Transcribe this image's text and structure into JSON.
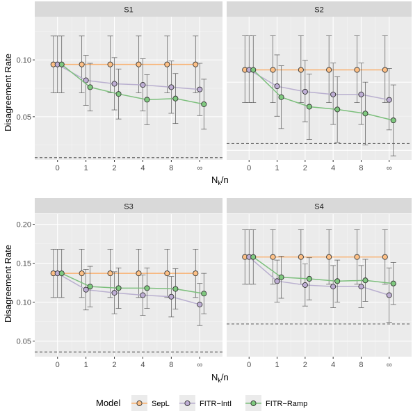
{
  "chart_data": {
    "type": "line",
    "x_tick_labels": [
      "0",
      "1",
      "2",
      "4",
      "8",
      "∞"
    ],
    "xlabel": "N_k/n",
    "xlabel_main": "N",
    "xlabel_sub": "k",
    "xlabel_tail": "/n",
    "ylabel": "Disagreement Rate",
    "legend": {
      "title": "Model",
      "position": "bottom",
      "entries": [
        {
          "name": "SepL",
          "color": "#fdc086",
          "line": "#f9b170"
        },
        {
          "name": "FITR−IntI",
          "color": "#beaed4",
          "line": "#b9afcf"
        },
        {
          "name": "FITR−Ramp",
          "color": "#7fc97f",
          "line": "#7cbf7c"
        }
      ]
    },
    "panels": [
      {
        "title": "S1",
        "ylim": [
          0.012,
          0.138
        ],
        "y_ticks": [
          0.05,
          0.1
        ],
        "y_tick_labels": [
          "0.05",
          "0.10"
        ],
        "reference_line": 0.014,
        "series": [
          {
            "name": "SepL",
            "values": [
              0.096,
              0.096,
              0.096,
              0.096,
              0.096,
              0.096
            ],
            "lower": [
              0.071,
              0.071,
              0.071,
              0.071,
              0.071,
              0.071
            ],
            "upper": [
              0.121,
              0.121,
              0.121,
              0.121,
              0.121,
              0.121
            ]
          },
          {
            "name": "FITR−IntI",
            "values": [
              0.096,
              0.082,
              0.079,
              0.078,
              0.076,
              0.074
            ],
            "lower": [
              0.071,
              0.06,
              0.056,
              0.055,
              0.053,
              0.051
            ],
            "upper": [
              0.121,
              0.104,
              0.102,
              0.101,
              0.099,
              0.097
            ]
          },
          {
            "name": "FITR−Ramp",
            "values": [
              0.096,
              0.076,
              0.07,
              0.065,
              0.066,
              0.061
            ],
            "lower": [
              0.071,
              0.055,
              0.048,
              0.043,
              0.044,
              0.039
            ],
            "upper": [
              0.121,
              0.097,
              0.092,
              0.087,
              0.088,
              0.083
            ]
          }
        ]
      },
      {
        "title": "S2",
        "ylim": [
          0.043,
          0.148
        ],
        "y_ticks": [
          0.05,
          0.1
        ],
        "y_tick_labels": [
          "",
          ""
        ],
        "reference_line": 0.055,
        "series": [
          {
            "name": "SepL",
            "values": [
              0.109,
              0.109,
              0.109,
              0.109,
              0.109,
              0.109
            ],
            "lower": [
              0.085,
              0.085,
              0.085,
              0.085,
              0.085,
              0.085
            ],
            "upper": [
              0.134,
              0.134,
              0.134,
              0.134,
              0.134,
              0.134
            ]
          },
          {
            "name": "FITR−IntI",
            "values": [
              0.109,
              0.097,
              0.093,
              0.091,
              0.091,
              0.087
            ],
            "lower": [
              0.085,
              0.075,
              0.071,
              0.069,
              0.069,
              0.065
            ],
            "upper": [
              0.134,
              0.12,
              0.116,
              0.114,
              0.114,
              0.11
            ]
          },
          {
            "name": "FITR−Ramp",
            "values": [
              0.109,
              0.089,
              0.082,
              0.08,
              0.077,
              0.072
            ],
            "lower": [
              0.085,
              0.066,
              0.058,
              0.056,
              0.054,
              0.046
            ],
            "upper": [
              0.134,
              0.112,
              0.106,
              0.104,
              0.1,
              0.098
            ]
          }
        ]
      },
      {
        "title": "S3",
        "ylim": [
          0.03,
          0.213
        ],
        "y_ticks": [
          0.05,
          0.1,
          0.15,
          0.2
        ],
        "y_tick_labels": [
          "0.05",
          "0.10",
          "0.15",
          "0.20"
        ],
        "reference_line": 0.036,
        "series": [
          {
            "name": "SepL",
            "values": [
              0.137,
              0.137,
              0.137,
              0.137,
              0.137,
              0.137
            ],
            "lower": [
              0.106,
              0.106,
              0.106,
              0.106,
              0.106,
              0.106
            ],
            "upper": [
              0.168,
              0.168,
              0.168,
              0.168,
              0.168,
              0.168
            ]
          },
          {
            "name": "FITR−IntI",
            "values": [
              0.137,
              0.116,
              0.112,
              0.109,
              0.107,
              0.097
            ],
            "lower": [
              0.106,
              0.09,
              0.085,
              0.083,
              0.081,
              0.07
            ],
            "upper": [
              0.168,
              0.142,
              0.139,
              0.135,
              0.133,
              0.124
            ]
          },
          {
            "name": "FITR−Ramp",
            "values": [
              0.137,
              0.12,
              0.118,
              0.118,
              0.117,
              0.111
            ],
            "lower": [
              0.106,
              0.094,
              0.092,
              0.092,
              0.091,
              0.085
            ],
            "upper": [
              0.168,
              0.146,
              0.144,
              0.144,
              0.143,
              0.137
            ]
          }
        ]
      },
      {
        "title": "S4",
        "ylim": [
          0.03,
          0.213
        ],
        "y_ticks": [
          0.05,
          0.1,
          0.15,
          0.2
        ],
        "y_tick_labels": [
          "",
          "",
          "",
          ""
        ],
        "reference_line": 0.072,
        "series": [
          {
            "name": "SepL",
            "values": [
              0.158,
              0.158,
              0.158,
              0.158,
              0.158,
              0.158
            ],
            "lower": [
              0.123,
              0.123,
              0.123,
              0.123,
              0.123,
              0.123
            ],
            "upper": [
              0.193,
              0.193,
              0.193,
              0.193,
              0.193,
              0.193
            ]
          },
          {
            "name": "FITR−IntI",
            "values": [
              0.158,
              0.127,
              0.122,
              0.12,
              0.12,
              0.109
            ],
            "lower": [
              0.123,
              0.1,
              0.095,
              0.093,
              0.093,
              0.074
            ],
            "upper": [
              0.193,
              0.154,
              0.149,
              0.147,
              0.147,
              0.144
            ]
          },
          {
            "name": "FITR−Ramp",
            "values": [
              0.158,
              0.132,
              0.13,
              0.127,
              0.128,
              0.124
            ],
            "lower": [
              0.123,
              0.105,
              0.103,
              0.1,
              0.101,
              0.097
            ],
            "upper": [
              0.193,
              0.159,
              0.157,
              0.154,
              0.155,
              0.151
            ]
          }
        ]
      }
    ]
  }
}
